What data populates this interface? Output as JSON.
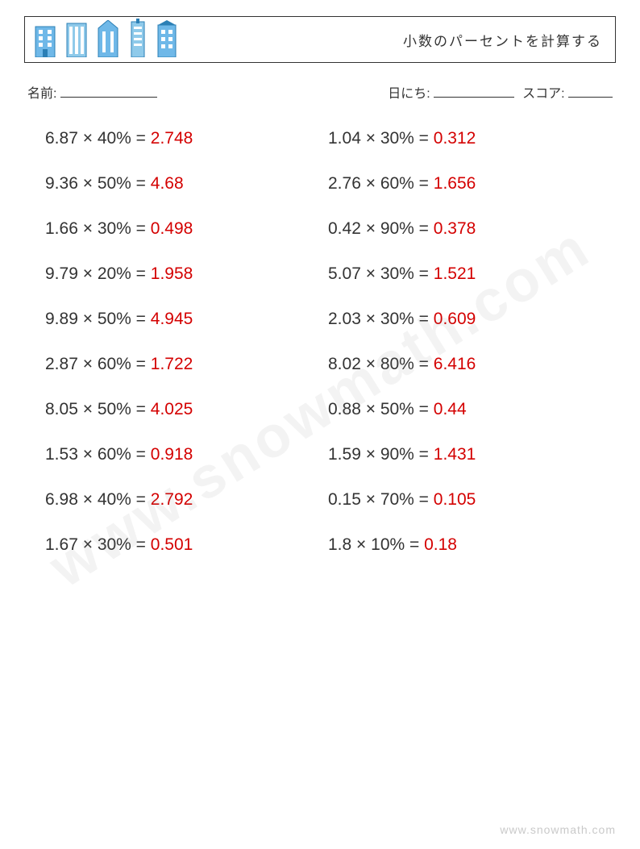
{
  "header": {
    "title": "小数のパーセントを計算する"
  },
  "info": {
    "name_label": "名前:",
    "date_label": "日にち:",
    "score_label": "スコア:"
  },
  "problems": {
    "left": [
      {
        "operand": "6.87",
        "percent": "40%",
        "answer": "2.748"
      },
      {
        "operand": "9.36",
        "percent": "50%",
        "answer": "4.68"
      },
      {
        "operand": "1.66",
        "percent": "30%",
        "answer": "0.498"
      },
      {
        "operand": "9.79",
        "percent": "20%",
        "answer": "1.958"
      },
      {
        "operand": "9.89",
        "percent": "50%",
        "answer": "4.945"
      },
      {
        "operand": "2.87",
        "percent": "60%",
        "answer": "1.722"
      },
      {
        "operand": "8.05",
        "percent": "50%",
        "answer": "4.025"
      },
      {
        "operand": "1.53",
        "percent": "60%",
        "answer": "0.918"
      },
      {
        "operand": "6.98",
        "percent": "40%",
        "answer": "2.792"
      },
      {
        "operand": "1.67",
        "percent": "30%",
        "answer": "0.501"
      }
    ],
    "right": [
      {
        "operand": "1.04",
        "percent": "30%",
        "answer": "0.312"
      },
      {
        "operand": "2.76",
        "percent": "60%",
        "answer": "1.656"
      },
      {
        "operand": "0.42",
        "percent": "90%",
        "answer": "0.378"
      },
      {
        "operand": "5.07",
        "percent": "30%",
        "answer": "1.521"
      },
      {
        "operand": "2.03",
        "percent": "30%",
        "answer": "0.609"
      },
      {
        "operand": "8.02",
        "percent": "80%",
        "answer": "6.416"
      },
      {
        "operand": "0.88",
        "percent": "50%",
        "answer": "0.44"
      },
      {
        "operand": "1.59",
        "percent": "90%",
        "answer": "1.431"
      },
      {
        "operand": "0.15",
        "percent": "70%",
        "answer": "0.105"
      },
      {
        "operand": "1.8",
        "percent": "10%",
        "answer": "0.18"
      }
    ]
  },
  "footer": {
    "url": "www.snowmath.com"
  },
  "colors": {
    "answer": "#d40000",
    "text": "#333333",
    "building_fill": "#6fb8e8",
    "building_stroke": "#2b7fb5"
  }
}
